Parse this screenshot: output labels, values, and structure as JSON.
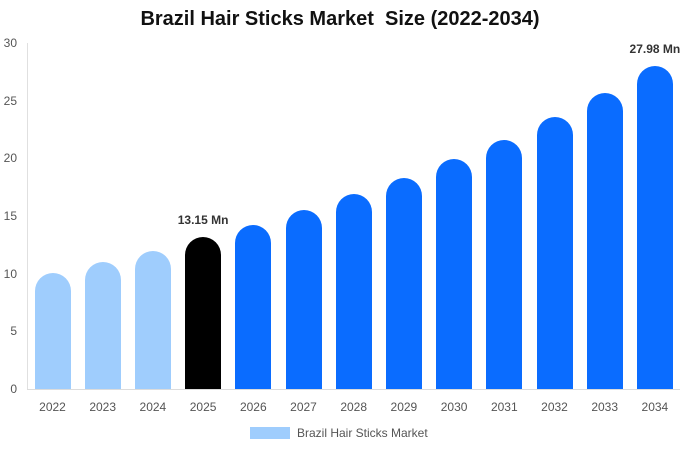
{
  "chart_data": {
    "type": "bar",
    "title": "Brazil Hair Sticks Market  Size (2022-2034)",
    "xlabel": "",
    "ylabel": "",
    "ylim": [
      0,
      30
    ],
    "yticks": [
      0,
      5,
      10,
      15,
      20,
      25,
      30
    ],
    "grid": false,
    "legend_position": "bottom",
    "categories": [
      "2022",
      "2023",
      "2024",
      "2025",
      "2026",
      "2027",
      "2028",
      "2029",
      "2030",
      "2031",
      "2032",
      "2033",
      "2034"
    ],
    "series": [
      {
        "name": "Brazil Hair Sticks Market",
        "values": [
          10.1,
          11.0,
          12.0,
          13.15,
          14.2,
          15.5,
          16.9,
          18.3,
          19.9,
          21.6,
          23.6,
          25.7,
          27.98
        ]
      }
    ],
    "bar_colors": [
      "#9fcdfd",
      "#9fcdfd",
      "#9fcdfd",
      "#000000",
      "#0a6cff",
      "#0a6cff",
      "#0a6cff",
      "#0a6cff",
      "#0a6cff",
      "#0a6cff",
      "#0a6cff",
      "#0a6cff",
      "#0a6cff"
    ],
    "annotations": [
      {
        "category": "2025",
        "text": "13.15 Mn"
      },
      {
        "category": "2034",
        "text": "27.98 Mn"
      }
    ]
  },
  "legend": {
    "label": "Brazil Hair Sticks Market",
    "color": "#9fcdfd"
  }
}
